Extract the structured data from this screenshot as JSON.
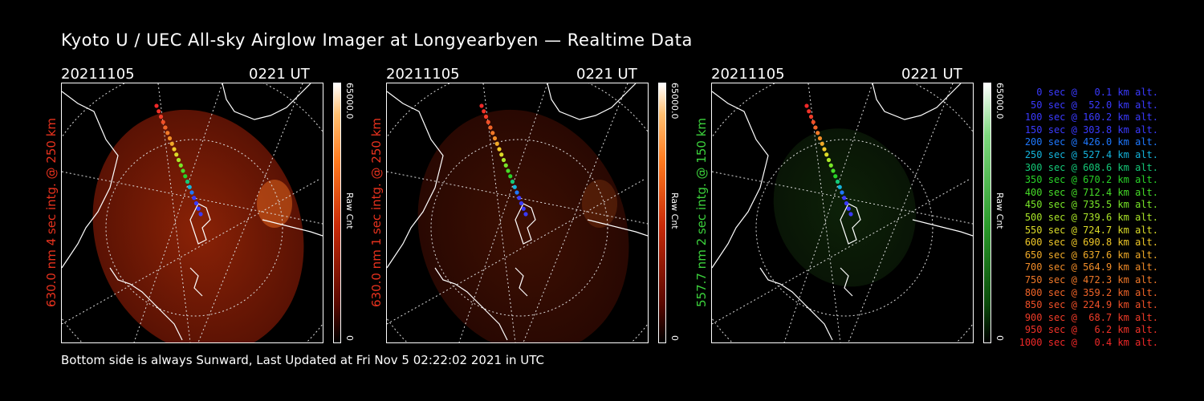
{
  "title": "Kyoto U / UEC All-sky Airglow Imager at Longyearbyen — Realtime Data",
  "footer": "Bottom side is always Sunward, Last Updated at Fri Nov  5 02:22:02 2021 in UTC",
  "panels": [
    {
      "date": "20211105",
      "time": "0221 UT",
      "ylabel": "630.0 nm 4 sec intg. @ 250 km",
      "ylabel_color": "#e8321e",
      "colorbar_max": "65000.0",
      "colorbar_min": "0",
      "colorbar_unit": "Raw Cnt",
      "colormap": "red",
      "intensity": 0.55
    },
    {
      "date": "20211105",
      "time": "0221 UT",
      "ylabel": "630.0 nm 1 sec intg. @ 250 km",
      "ylabel_color": "#e8321e",
      "colorbar_max": "65000.0",
      "colorbar_min": "0",
      "colorbar_unit": "Raw Cnt",
      "colormap": "red",
      "intensity": 0.18
    },
    {
      "date": "20211105",
      "time": "0221 UT",
      "ylabel": "557.7 nm 2 sec intg. @ 150 km",
      "ylabel_color": "#3cd23c",
      "colorbar_max": "65000.0",
      "colorbar_min": "0",
      "colorbar_unit": "Raw Cnt",
      "colormap": "green",
      "intensity": 0.22
    }
  ],
  "legend": [
    {
      "text": "   0 sec @   0.1 km alt.",
      "color": "#3a3aff"
    },
    {
      "text": "  50 sec @  52.0 km alt.",
      "color": "#3a3aff"
    },
    {
      "text": " 100 sec @ 160.2 km alt.",
      "color": "#3a3aff"
    },
    {
      "text": " 150 sec @ 303.8 km alt.",
      "color": "#3a3aff"
    },
    {
      "text": " 200 sec @ 426.0 km alt.",
      "color": "#1e78ff"
    },
    {
      "text": " 250 sec @ 527.4 km alt.",
      "color": "#14b4dc"
    },
    {
      "text": " 300 sec @ 608.6 km alt.",
      "color": "#14c878"
    },
    {
      "text": " 350 sec @ 670.2 km alt.",
      "color": "#28d228"
    },
    {
      "text": " 400 sec @ 712.4 km alt.",
      "color": "#46dc28"
    },
    {
      "text": " 450 sec @ 735.5 km alt.",
      "color": "#78e628"
    },
    {
      "text": " 500 sec @ 739.6 km alt.",
      "color": "#aae628"
    },
    {
      "text": " 550 sec @ 724.7 km alt.",
      "color": "#dcdc28"
    },
    {
      "text": " 600 sec @ 690.8 km alt.",
      "color": "#f0c828"
    },
    {
      "text": " 650 sec @ 637.6 km alt.",
      "color": "#f0aa28"
    },
    {
      "text": " 700 sec @ 564.9 km alt.",
      "color": "#f08c28"
    },
    {
      "text": " 750 sec @ 472.3 km alt.",
      "color": "#f07828"
    },
    {
      "text": " 800 sec @ 359.2 km alt.",
      "color": "#f06428"
    },
    {
      "text": " 850 sec @ 224.9 km alt.",
      "color": "#f05028"
    },
    {
      "text": " 900 sec @  68.7 km alt.",
      "color": "#f03c28"
    },
    {
      "text": " 950 sec @   6.2 km alt.",
      "color": "#f03228"
    },
    {
      "text": "1000 sec @   0.4 km alt.",
      "color": "#f02828"
    }
  ]
}
